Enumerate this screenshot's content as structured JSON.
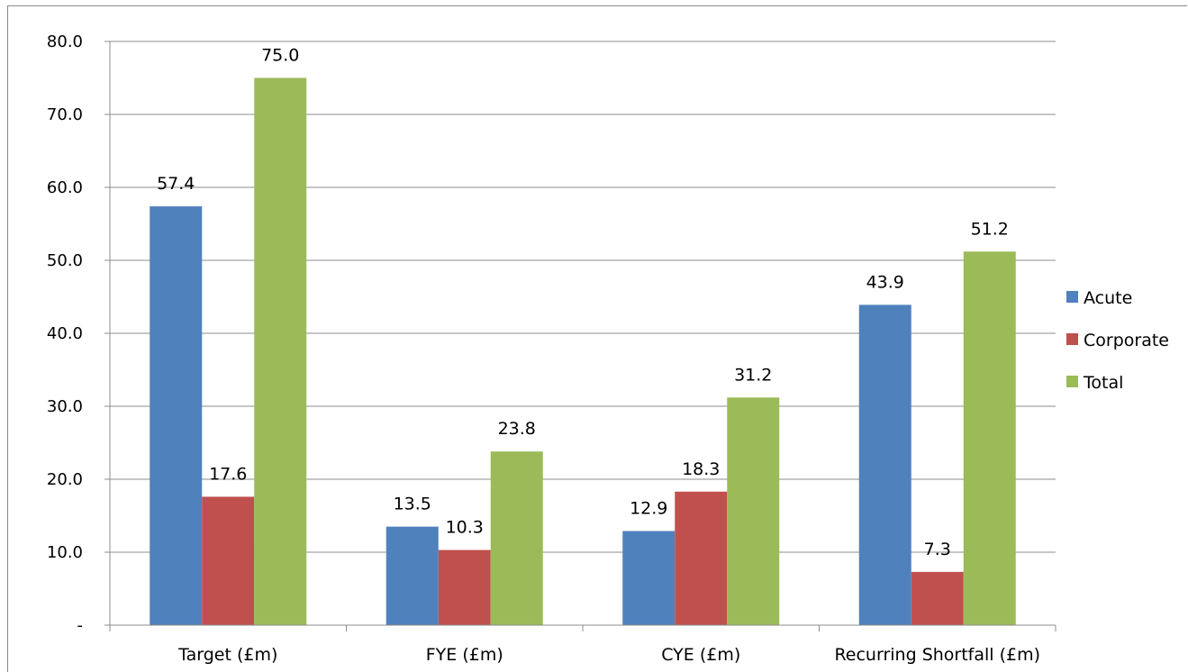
{
  "chart_data": {
    "type": "bar",
    "categories": [
      "Target (£m)",
      "FYE (£m)",
      "CYE (£m)",
      "Recurring Shortfall (£m)"
    ],
    "series": [
      {
        "name": "Acute",
        "color": "#4f81bd",
        "values": [
          57.4,
          13.5,
          12.9,
          43.9
        ]
      },
      {
        "name": "Corporate",
        "color": "#c0504d",
        "values": [
          17.6,
          10.3,
          18.3,
          7.3
        ]
      },
      {
        "name": "Total",
        "color": "#9bbb59",
        "values": [
          75.0,
          23.8,
          31.2,
          51.2
        ]
      }
    ],
    "y_tick_values": [
      0,
      10,
      20,
      30,
      40,
      50,
      60,
      70,
      80
    ],
    "y_tick_labels": [
      "-",
      "10.0",
      "20.0",
      "30.0",
      "40.0",
      "50.0",
      "60.0",
      "70.0",
      "80.0"
    ],
    "ylim": [
      0,
      80
    ],
    "grid": true,
    "legend_position": "right",
    "title": "",
    "xlabel": "",
    "ylabel": ""
  }
}
